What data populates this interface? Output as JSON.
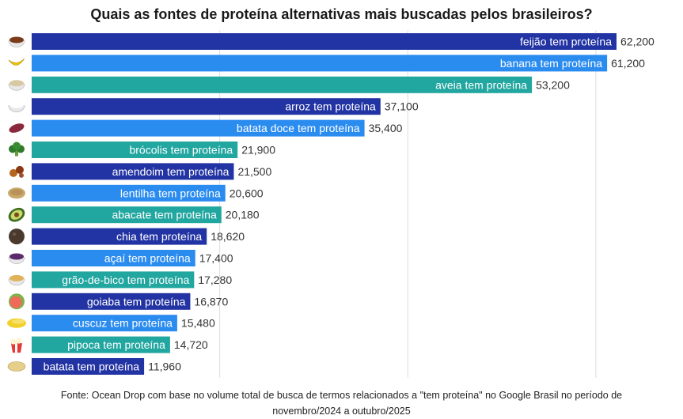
{
  "title": "Quais as fontes de proteína alternativas mais buscadas pelos brasileiros?",
  "source": {
    "line1": "Fonte: Ocean Drop com base no volume total de busca de termos relacionados a \"tem proteína\" no Google Brasil no período de",
    "line2": "novembro/2024 a outubro/2025"
  },
  "colors": {
    "dark_blue": "#2233a3",
    "light_blue": "#2b8cf0",
    "teal": "#22a6a0",
    "grid": "#dddddd"
  },
  "chart_data": {
    "type": "bar",
    "orientation": "horizontal",
    "title": "Quais as fontes de proteína alternativas mais buscadas pelos brasileiros?",
    "xlabel": "",
    "ylabel": "",
    "grid": true,
    "categories": [
      "feijão tem proteína",
      "banana tem proteína",
      "aveia tem proteína",
      "arroz tem proteína",
      "batata doce tem proteína",
      "brócolis tem proteína",
      "amendoim tem proteína",
      "lentilha tem proteína",
      "abacate tem proteína",
      "chia tem proteína",
      "açaí tem proteína",
      "grão-de-bico tem proteína",
      "goiaba tem proteína",
      "cuscuz tem proteína",
      "pipoca tem proteína",
      "batata tem proteína"
    ],
    "values": [
      62200,
      61200,
      53200,
      37100,
      35400,
      21900,
      21500,
      20600,
      20180,
      18620,
      17400,
      17280,
      16870,
      15480,
      14720,
      11960
    ],
    "value_labels": [
      "62,200",
      "61,200",
      "53,200",
      "37,100",
      "35,400",
      "21,900",
      "21,500",
      "20,600",
      "20,180",
      "18,620",
      "17,400",
      "17,280",
      "16,870",
      "15,480",
      "14,720",
      "11,960"
    ],
    "icons": [
      "beans-bowl-icon",
      "banana-icon",
      "oats-bowl-icon",
      "rice-bowl-icon",
      "sweet-potato-icon",
      "broccoli-icon",
      "peanut-icon",
      "lentil-icon",
      "avocado-icon",
      "chia-seeds-icon",
      "acai-bowl-icon",
      "chickpea-bowl-icon",
      "guava-icon",
      "couscous-icon",
      "popcorn-icon",
      "potato-icon"
    ],
    "bar_colors": [
      "dark_blue",
      "light_blue",
      "teal",
      "dark_blue",
      "light_blue",
      "teal",
      "dark_blue",
      "light_blue",
      "teal",
      "dark_blue",
      "light_blue",
      "teal",
      "dark_blue",
      "light_blue",
      "teal",
      "dark_blue"
    ]
  }
}
